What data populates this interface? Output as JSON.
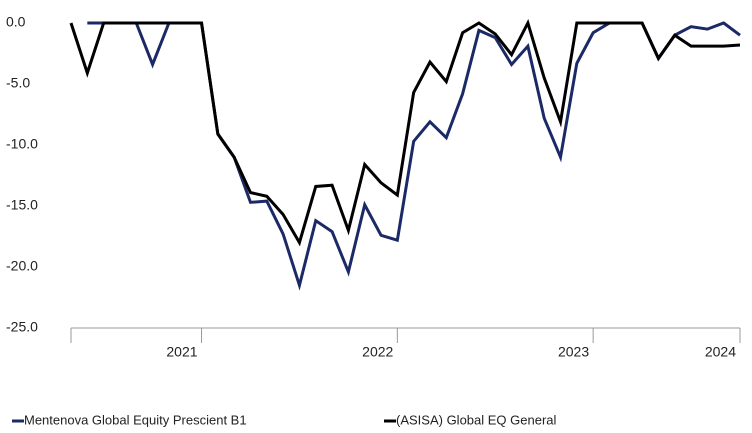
{
  "chart_data": {
    "type": "line",
    "x": [
      0,
      1,
      2,
      3,
      4,
      5,
      6,
      7,
      8,
      9,
      10,
      11,
      12,
      13,
      14,
      15,
      16,
      17,
      18,
      19,
      20,
      21,
      22,
      23,
      24,
      25,
      26,
      27,
      28,
      29,
      30,
      31,
      32,
      33,
      34,
      35,
      36,
      37,
      38,
      39,
      40,
      41
    ],
    "series": [
      {
        "name": "Mentenova Global Equity Prescient B1",
        "color": "#1b2a66",
        "values": [
          null,
          0,
          0,
          0,
          0,
          -3.4,
          0,
          0,
          0,
          -9.1,
          -11,
          -14.7,
          -14.6,
          -17.3,
          -21.5,
          -16.2,
          -17.1,
          -20.4,
          -14.9,
          -17.4,
          -17.8,
          -9.7,
          -8.1,
          -9.4,
          -5.8,
          -0.6,
          -1.2,
          -3.4,
          -1.9,
          -7.8,
          -11,
          -3.3,
          -0.8,
          0,
          0,
          0,
          -2.9,
          -1,
          -0.3,
          -0.5,
          0,
          -1
        ]
      },
      {
        "name": "(ASISA) Global EQ General",
        "color": "#000000",
        "values": [
          0,
          -4.1,
          0,
          0,
          0,
          0,
          0,
          0,
          0,
          -9.1,
          -11,
          -13.9,
          -14.2,
          -15.7,
          -18,
          -13.4,
          -13.3,
          -17,
          -11.6,
          -13.1,
          -14.1,
          -5.7,
          -3.2,
          -4.8,
          -0.8,
          0,
          -0.9,
          -2.6,
          0,
          -4.5,
          -8.1,
          0,
          0,
          0,
          0,
          0,
          -2.9,
          -1,
          -1.9,
          -1.9,
          -1.9,
          -1.8
        ]
      }
    ],
    "xlim": [
      0,
      41
    ],
    "xticks": [
      {
        "value": 8,
        "label": "2021"
      },
      {
        "value": 20,
        "label": "2022"
      },
      {
        "value": 32,
        "label": "2023"
      },
      {
        "value": 41,
        "label": "2024"
      }
    ],
    "ylim": [
      -25,
      0
    ],
    "yticks": [
      {
        "value": 0,
        "label": "0.0"
      },
      {
        "value": -5,
        "label": "-5.0"
      },
      {
        "value": -10,
        "label": "-10.0"
      },
      {
        "value": -15,
        "label": "-15.0"
      },
      {
        "value": -20,
        "label": "-20.0"
      },
      {
        "value": -25,
        "label": "-25.0"
      }
    ],
    "grid": false
  }
}
